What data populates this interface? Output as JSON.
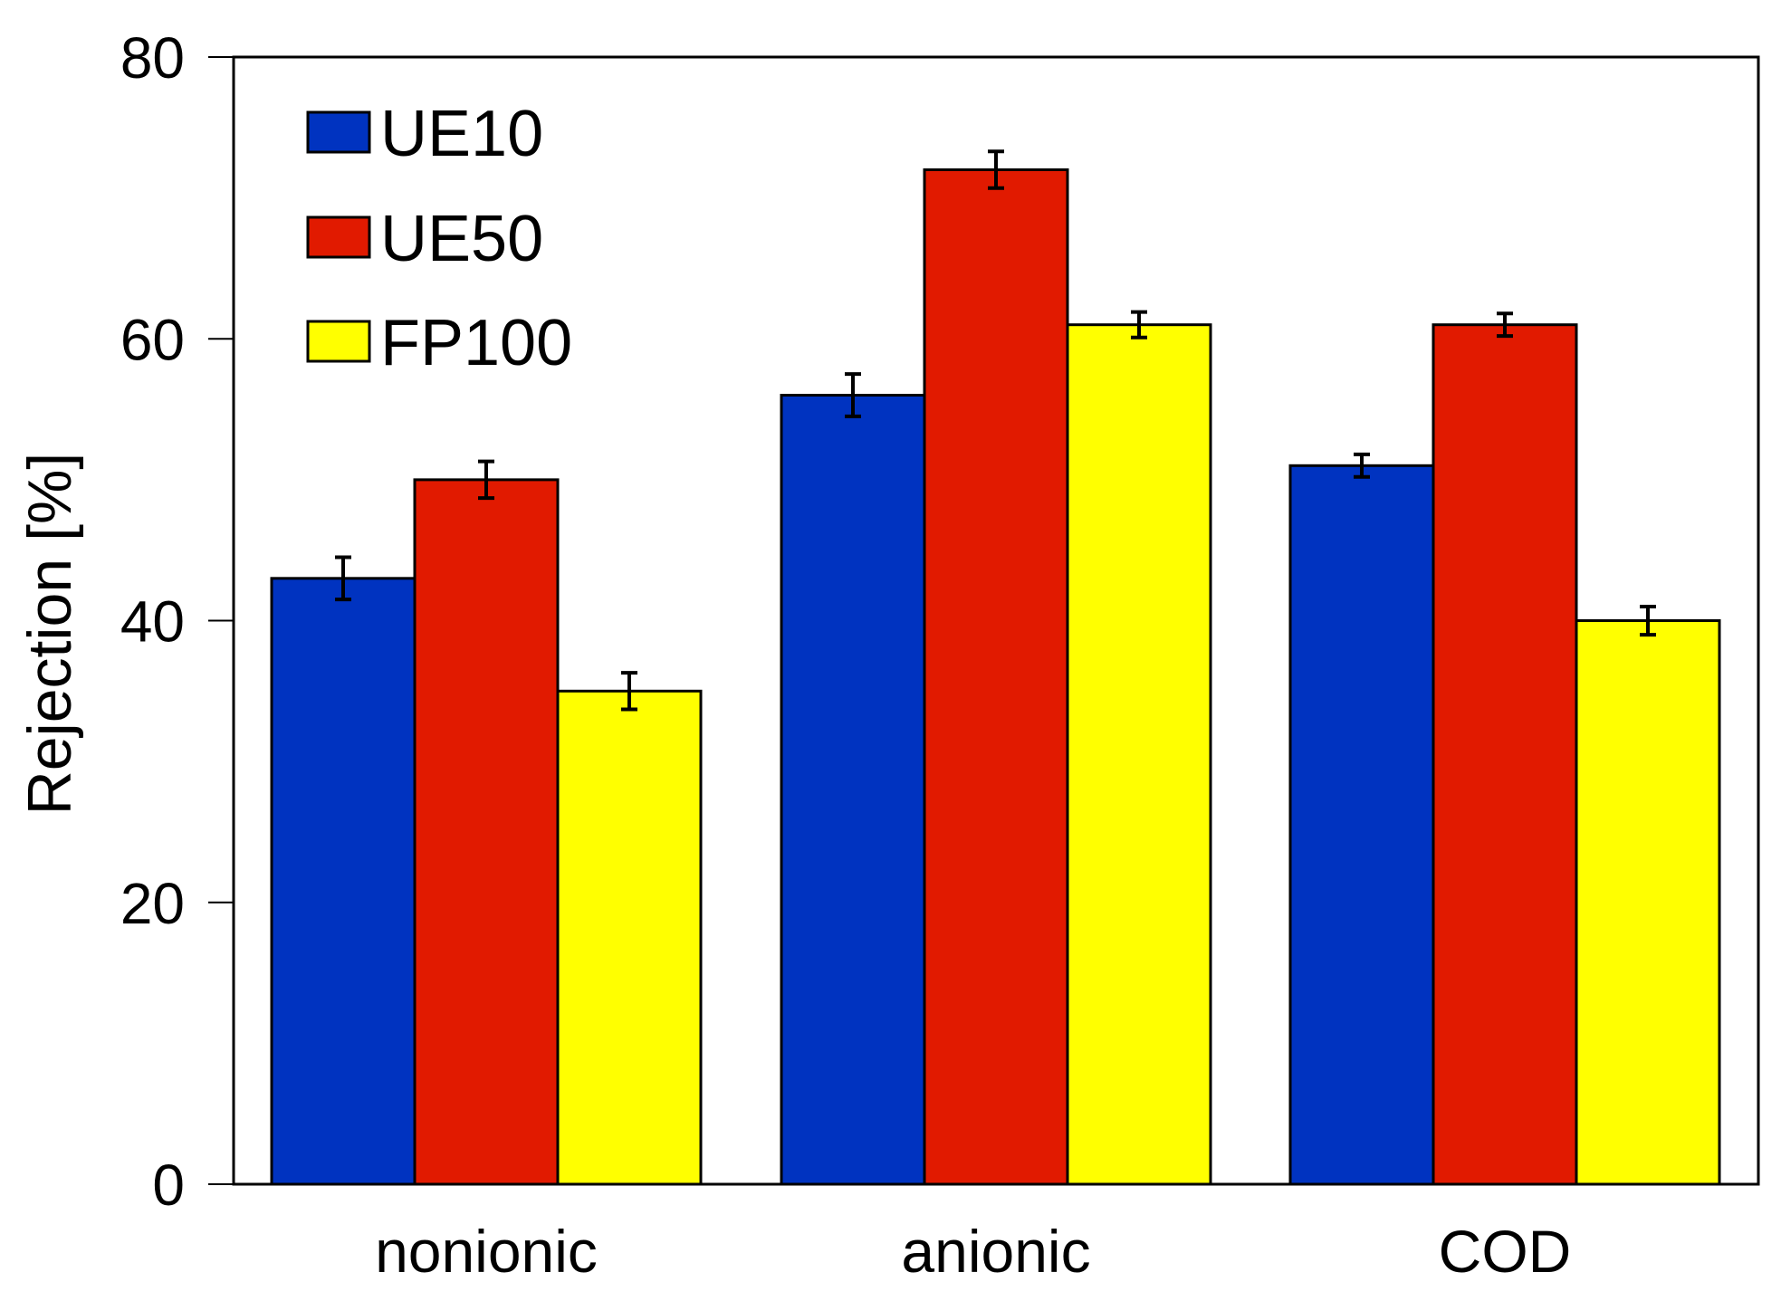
{
  "chart_data": {
    "type": "bar",
    "title": "",
    "xlabel": "",
    "ylabel": "Rejection [%]",
    "ylim": [
      0,
      80
    ],
    "yticks": [
      0,
      20,
      40,
      60,
      80
    ],
    "yticks_labels": [
      "0",
      "20",
      "40",
      "60",
      "80"
    ],
    "categories": [
      "nonionic",
      "anionic",
      "COD"
    ],
    "series": [
      {
        "name": "UE10",
        "color": "#0033c0",
        "values": [
          43,
          56,
          51
        ],
        "errors": [
          1.5,
          1.5,
          0.8
        ]
      },
      {
        "name": "UE50",
        "color": "#e11a00",
        "values": [
          50,
          72,
          61
        ],
        "errors": [
          1.3,
          1.3,
          0.8
        ]
      },
      {
        "name": "FP100",
        "color": "#ffff00",
        "values": [
          35,
          61,
          40
        ],
        "errors": [
          1.3,
          0.9,
          1.0
        ]
      }
    ],
    "legend_position": "top-left",
    "grid": false
  }
}
